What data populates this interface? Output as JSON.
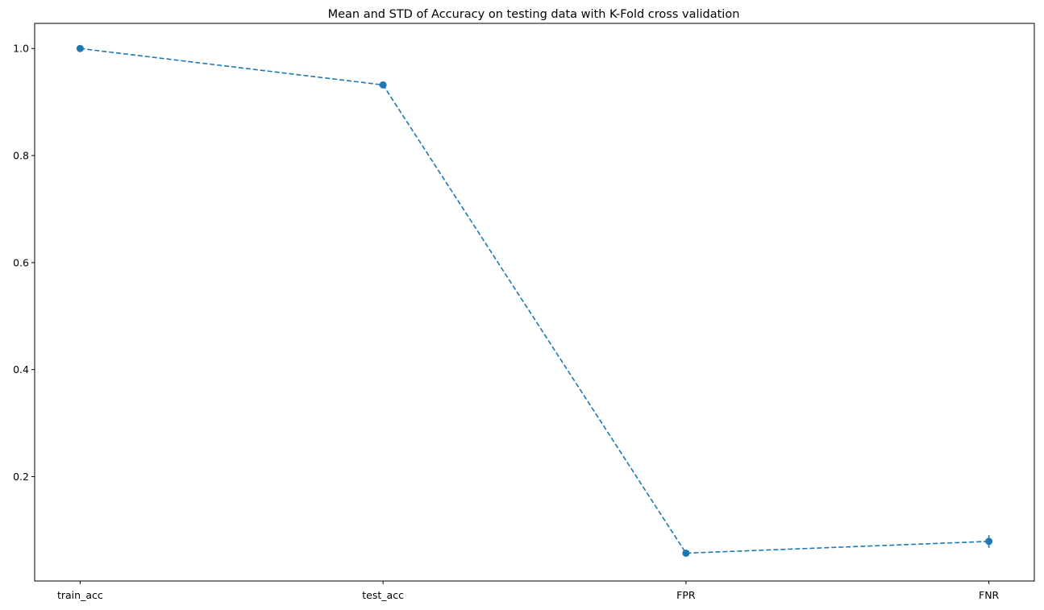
{
  "chart_data": {
    "type": "line",
    "title": "Mean and STD of Accuracy on testing data with K-Fold cross validation",
    "xlabel": "",
    "ylabel": "",
    "categories": [
      "train_acc",
      "test_acc",
      "FPR",
      "FNR"
    ],
    "series": [
      {
        "values": [
          1.0,
          0.932,
          0.057,
          0.079
        ],
        "std": [
          0.0,
          0.003,
          0.003,
          0.012
        ],
        "color": "#1f77b4",
        "line_style": "dashed",
        "marker": "circle"
      }
    ],
    "ylim": [
      0.005,
      1.047
    ],
    "yticks": [
      0.2,
      0.4,
      0.6,
      0.8,
      1.0
    ],
    "ytick_labels": [
      "0.2",
      "0.4",
      "0.6",
      "0.8",
      "1.0"
    ],
    "grid": false,
    "legend": "none"
  }
}
